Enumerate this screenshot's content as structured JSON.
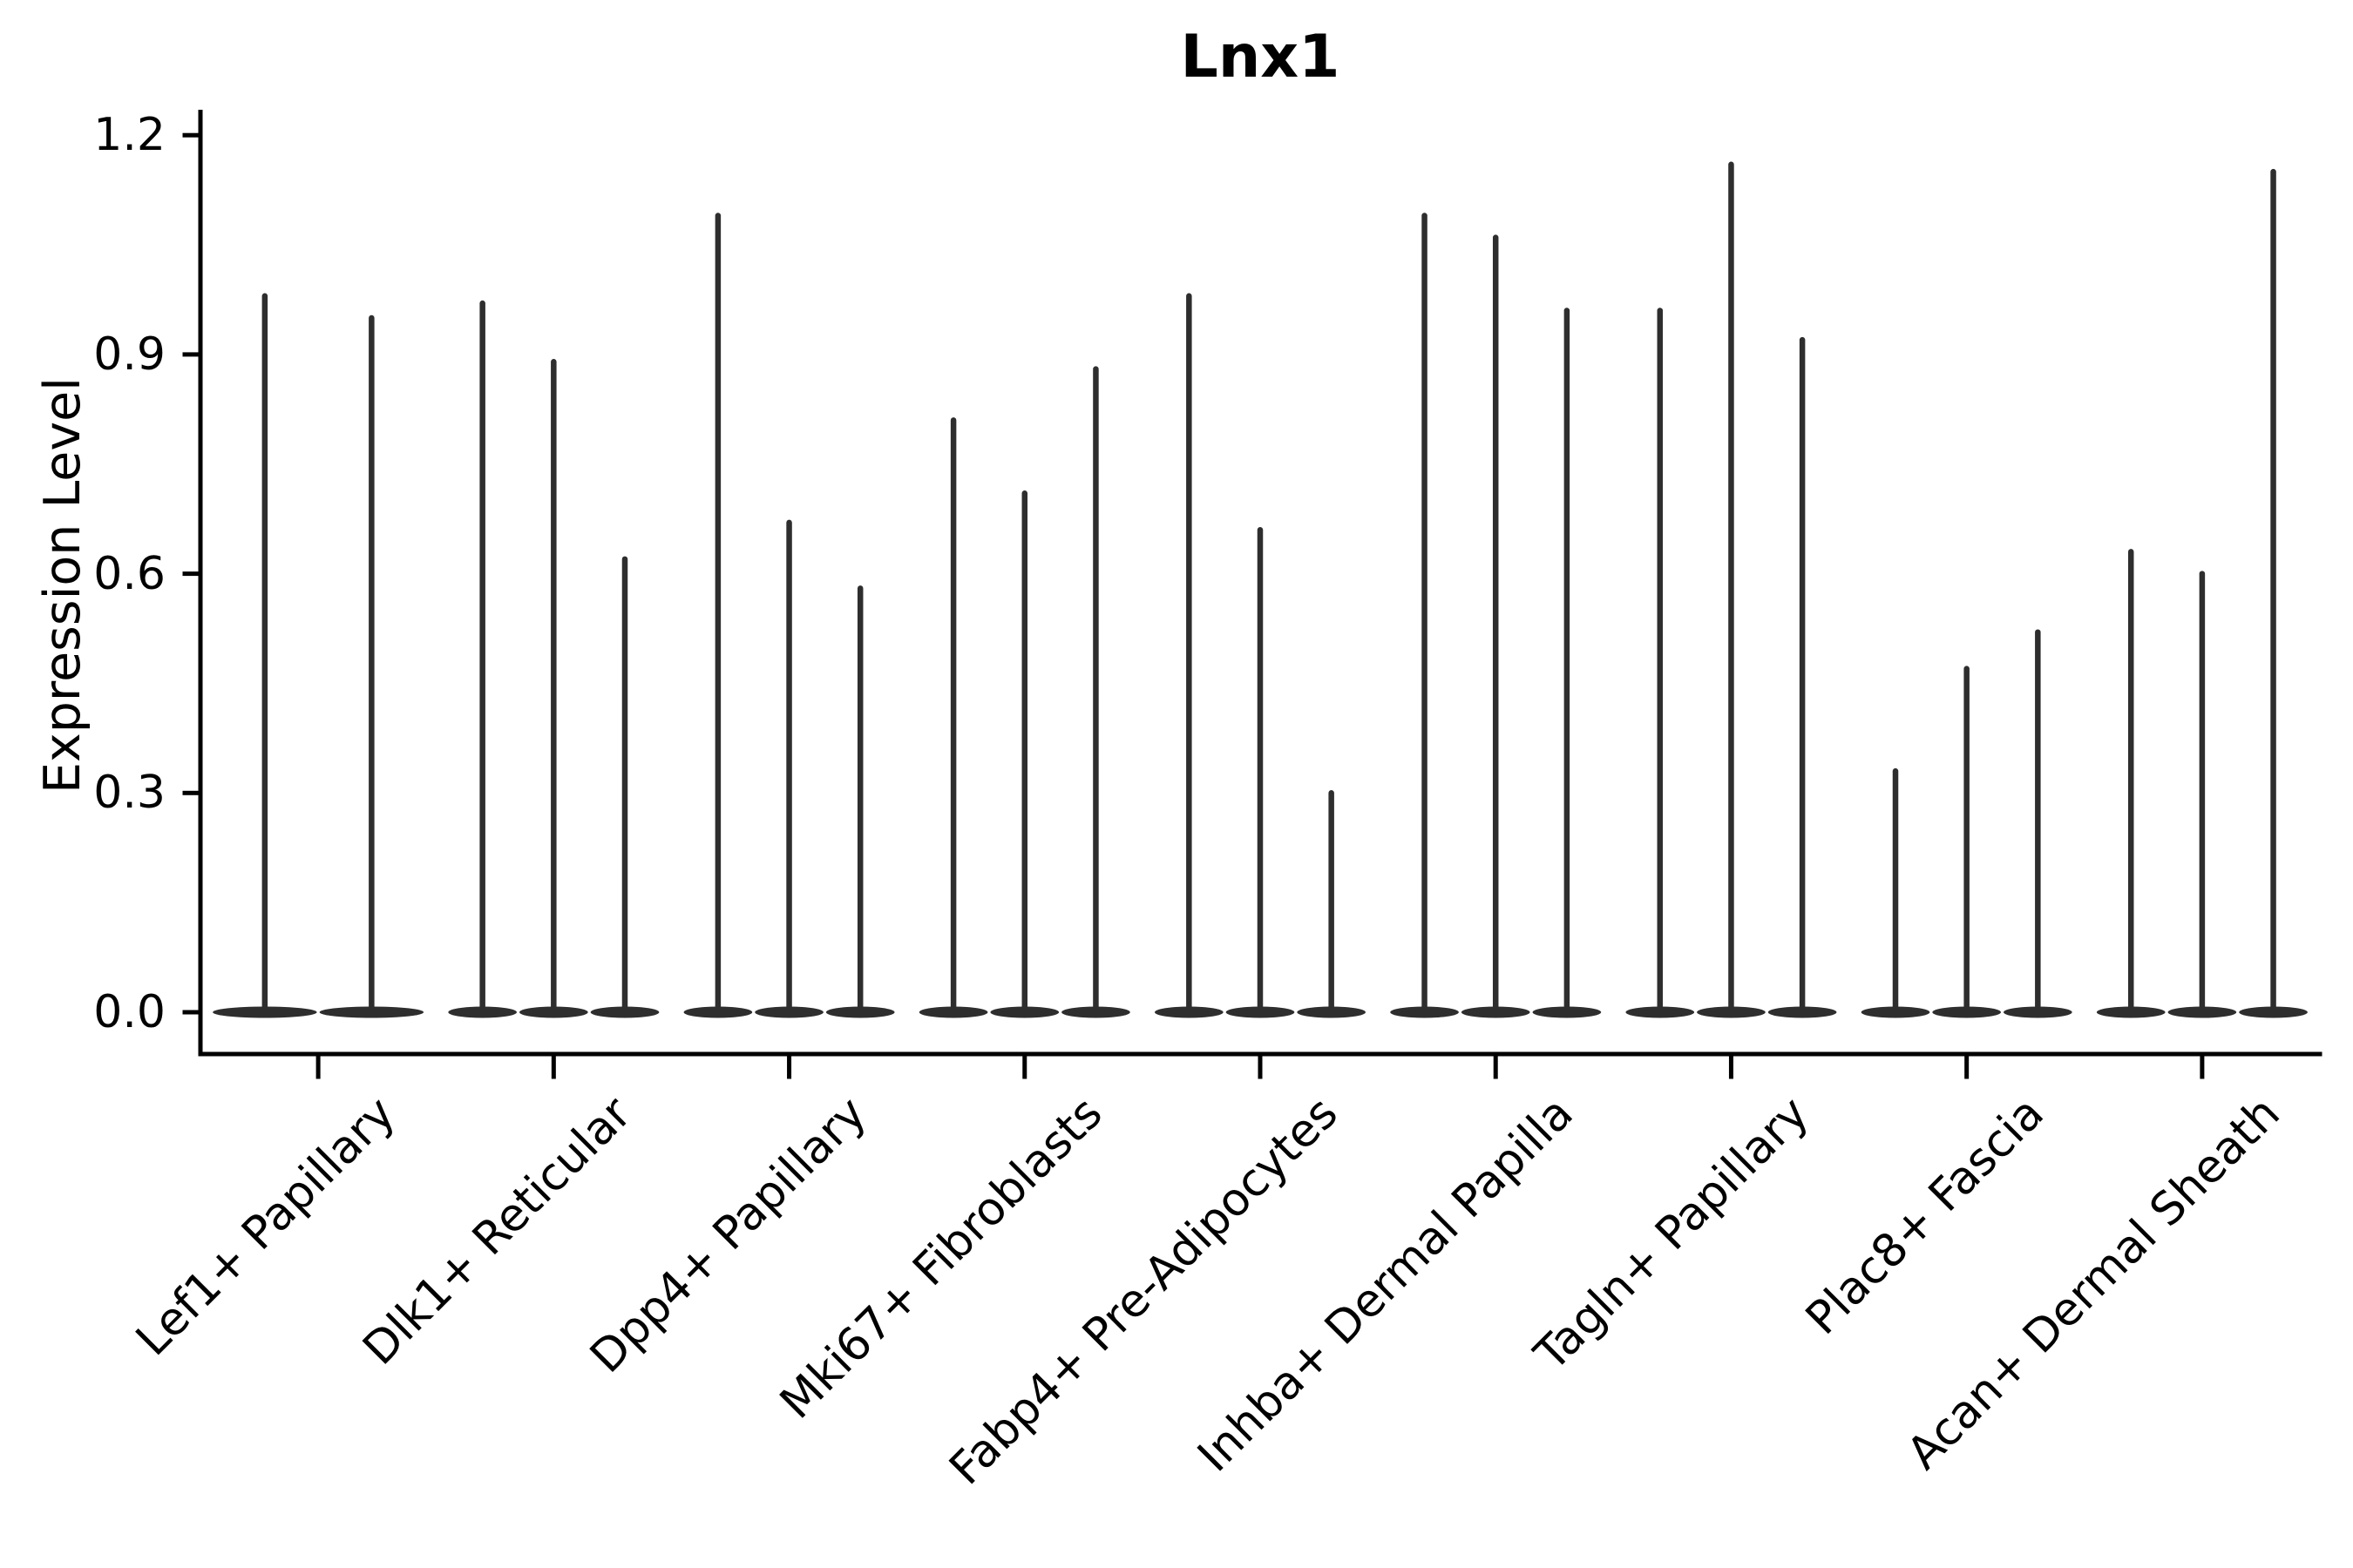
{
  "title": "Lnx1",
  "colors": {
    "violin": "#2e2e2e",
    "axis": "#000000",
    "text": "#000000",
    "background": "#ffffff"
  },
  "chart_data": {
    "type": "violin",
    "title": "Lnx1",
    "xlabel": "",
    "ylabel": "Expression Level",
    "ylim": [
      -0.06,
      1.23
    ],
    "grid": false,
    "legend": "none",
    "y_ticks": [
      {
        "label": "0.0",
        "value": 0.0
      },
      {
        "label": "0.3",
        "value": 0.3
      },
      {
        "label": "0.6",
        "value": 0.6
      },
      {
        "label": "0.9",
        "value": 0.9
      },
      {
        "label": "1.2",
        "value": 1.2
      }
    ],
    "categories": [
      "Lef1+ Papillary",
      "Dlk1+ Reticular",
      "Dpp4+ Papillary",
      "Mki67+ Fibroblasts",
      "Fabp4+ Pre-Adipocytes",
      "Inhba+ Dermal Papilla",
      "Tagln+ Papillary",
      "Plac8+ Fascia",
      "Acan+ Dermal Sheath"
    ],
    "violins": [
      {
        "category": "Lef1+ Papillary",
        "baseline_value": 0.0,
        "spike_maxima": [
          0.98,
          0.95
        ]
      },
      {
        "category": "Dlk1+ Reticular",
        "baseline_value": 0.0,
        "spike_maxima": [
          0.97,
          0.89,
          0.62
        ]
      },
      {
        "category": "Dpp4+ Papillary",
        "baseline_value": 0.0,
        "spike_maxima": [
          1.09,
          0.67,
          0.58
        ]
      },
      {
        "category": "Mki67+ Fibroblasts",
        "baseline_value": 0.0,
        "spike_maxima": [
          0.81,
          0.71,
          0.88
        ]
      },
      {
        "category": "Fabp4+ Pre-Adipocytes",
        "baseline_value": 0.0,
        "spike_maxima": [
          0.98,
          0.66,
          0.3
        ]
      },
      {
        "category": "Inhba+ Dermal Papilla",
        "baseline_value": 0.0,
        "spike_maxima": [
          1.09,
          1.06,
          0.96
        ]
      },
      {
        "category": "Tagln+ Papillary",
        "baseline_value": 0.0,
        "spike_maxima": [
          0.96,
          1.16,
          0.92
        ]
      },
      {
        "category": "Plac8+ Fascia",
        "baseline_value": 0.0,
        "spike_maxima": [
          0.33,
          0.47,
          0.52
        ]
      },
      {
        "category": "Acan+ Dermal Sheath",
        "baseline_value": 0.0,
        "spike_maxima": [
          0.63,
          0.6,
          1.15
        ]
      }
    ],
    "annotation": "Each violin is concentrated at 0 expression with a thin spike to its maximum"
  }
}
